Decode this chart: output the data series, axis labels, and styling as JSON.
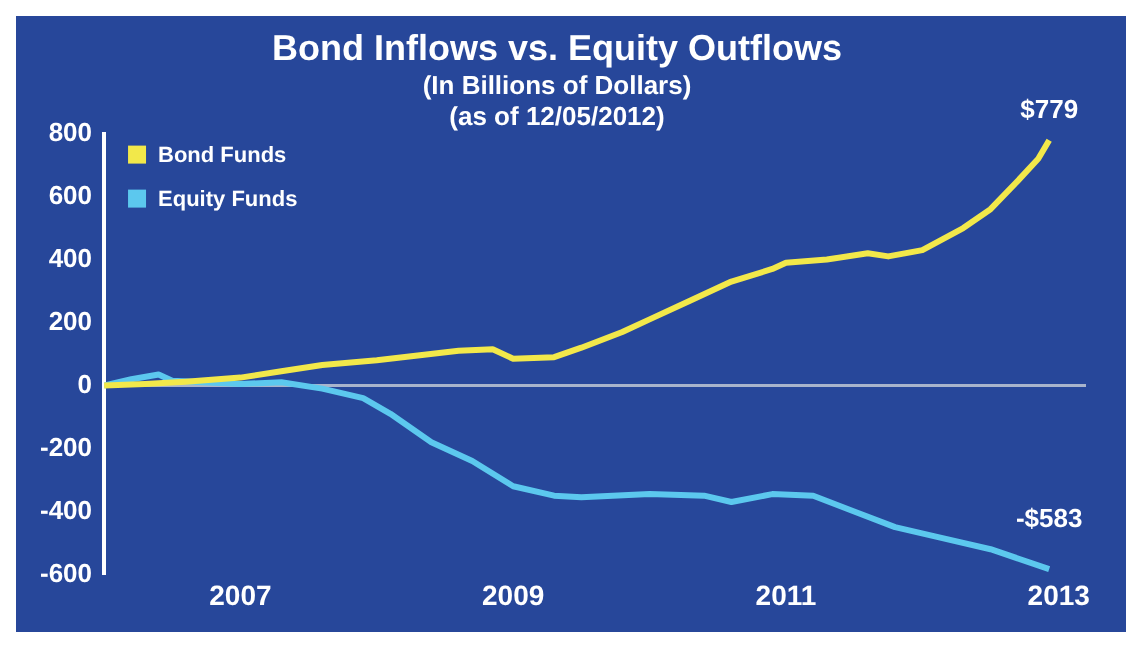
{
  "chart_data": {
    "type": "line",
    "title": "Bond Inflows vs. Equity Outflows",
    "subtitle": "(In Billions of Dollars)",
    "annotations": [
      "(as of 12/05/2012)",
      {
        "text": "$779",
        "x": 2012.93,
        "y": 779
      },
      {
        "text": "-$583",
        "x": 2012.93,
        "y": -583
      }
    ],
    "series": [
      {
        "name": "Bond Funds",
        "color": "#f2e84a",
        "x": [
          2006.0,
          2006.3,
          2006.6,
          2007.0,
          2007.3,
          2007.6,
          2008.0,
          2008.3,
          2008.6,
          2008.85,
          2009.0,
          2009.3,
          2009.5,
          2009.8,
          2010.0,
          2010.3,
          2010.6,
          2010.9,
          2011.0,
          2011.3,
          2011.6,
          2011.75,
          2012.0,
          2012.3,
          2012.5,
          2012.7,
          2012.85,
          2012.93
        ],
        "values": [
          0,
          5,
          12,
          25,
          45,
          65,
          80,
          95,
          110,
          115,
          85,
          90,
          120,
          170,
          210,
          270,
          330,
          370,
          390,
          400,
          420,
          410,
          430,
          500,
          560,
          650,
          720,
          779
        ]
      },
      {
        "name": "Equity Funds",
        "color": "#5cc8ee",
        "x": [
          2006.0,
          2006.2,
          2006.4,
          2006.5,
          2007.0,
          2007.3,
          2007.6,
          2007.9,
          2008.1,
          2008.4,
          2008.7,
          2009.0,
          2009.3,
          2009.5,
          2010.0,
          2010.4,
          2010.6,
          2010.9,
          2011.2,
          2011.5,
          2011.8,
          2012.1,
          2012.5,
          2012.93
        ],
        "values": [
          0,
          20,
          35,
          15,
          5,
          10,
          -10,
          -40,
          -90,
          -180,
          -240,
          -320,
          -350,
          -355,
          -345,
          -350,
          -370,
          -345,
          -350,
          -400,
          -450,
          -480,
          -520,
          -583
        ]
      }
    ],
    "xlim": [
      2006,
      2013.2
    ],
    "xticks": [
      2007,
      2009,
      2011,
      2013
    ],
    "ylim": [
      -600,
      800
    ],
    "yticks": [
      -600,
      -400,
      -200,
      0,
      200,
      400,
      600,
      800
    ],
    "ref_lines": [
      {
        "axis": "y",
        "value": 0,
        "color": "#a8b4cc"
      }
    ],
    "legend": "top left",
    "marker": "none",
    "line_style": "solid"
  }
}
